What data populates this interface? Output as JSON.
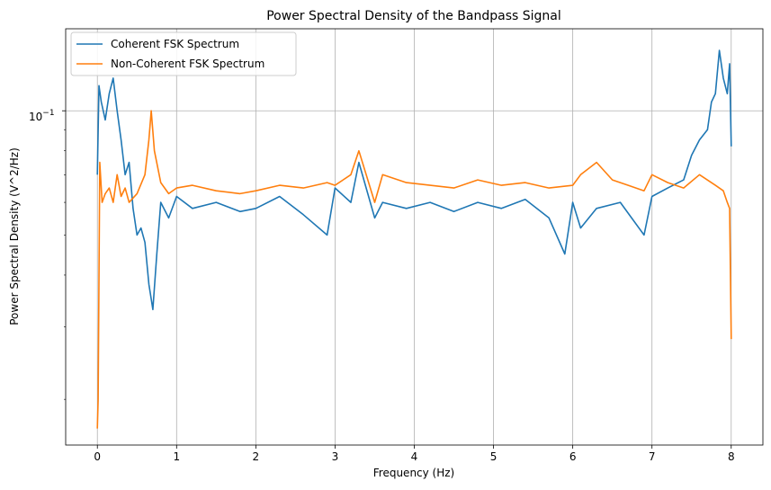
{
  "chart_data": {
    "type": "line",
    "title": "Power Spectral Density of the Bandpass Signal",
    "xlabel": "Frequency (Hz)",
    "ylabel": "Power Spectral Density (V^2/Hz)",
    "yscale": "log",
    "xlim": [
      -0.4,
      8.4
    ],
    "ylim": [
      0.0155,
      0.158
    ],
    "x_ticks": [
      0,
      1,
      2,
      3,
      4,
      5,
      6,
      7,
      8
    ],
    "x_tick_labels": [
      "0",
      "1",
      "2",
      "3",
      "4",
      "5",
      "6",
      "7",
      "8"
    ],
    "y_ticks": [
      0.1
    ],
    "y_tick_base": "10",
    "y_tick_exp": "−1",
    "grid": true,
    "legend": "top-left",
    "series": [
      {
        "name": "Coherent FSK Spectrum",
        "color": "#1f77b4",
        "x": [
          0,
          0.02,
          0.05,
          0.1,
          0.15,
          0.2,
          0.25,
          0.3,
          0.35,
          0.4,
          0.45,
          0.5,
          0.55,
          0.6,
          0.65,
          0.68,
          0.7,
          0.75,
          0.8,
          0.9,
          1.0,
          1.2,
          1.5,
          1.8,
          2.0,
          2.3,
          2.6,
          2.9,
          3.0,
          3.2,
          3.3,
          3.5,
          3.6,
          3.9,
          4.2,
          4.5,
          4.8,
          5.1,
          5.4,
          5.7,
          5.9,
          6.0,
          6.1,
          6.3,
          6.6,
          6.9,
          7.0,
          7.2,
          7.4,
          7.5,
          7.6,
          7.7,
          7.75,
          7.8,
          7.85,
          7.9,
          7.95,
          7.98,
          8.0
        ],
        "values": [
          0.07,
          0.115,
          0.105,
          0.095,
          0.11,
          0.12,
          0.1,
          0.085,
          0.07,
          0.075,
          0.058,
          0.05,
          0.052,
          0.048,
          0.038,
          0.035,
          0.033,
          0.045,
          0.06,
          0.055,
          0.062,
          0.058,
          0.06,
          0.057,
          0.058,
          0.062,
          0.056,
          0.05,
          0.065,
          0.06,
          0.075,
          0.055,
          0.06,
          0.058,
          0.06,
          0.057,
          0.06,
          0.058,
          0.061,
          0.055,
          0.045,
          0.06,
          0.052,
          0.058,
          0.06,
          0.05,
          0.062,
          0.065,
          0.068,
          0.078,
          0.085,
          0.09,
          0.105,
          0.11,
          0.14,
          0.12,
          0.11,
          0.13,
          0.082
        ]
      },
      {
        "name": "Non-Coherent FSK Spectrum",
        "color": "#ff7f0e",
        "x": [
          0,
          0.01,
          0.03,
          0.06,
          0.1,
          0.15,
          0.2,
          0.25,
          0.3,
          0.35,
          0.4,
          0.5,
          0.6,
          0.65,
          0.68,
          0.72,
          0.8,
          0.9,
          1.0,
          1.2,
          1.5,
          1.8,
          2.0,
          2.3,
          2.6,
          2.9,
          3.0,
          3.2,
          3.3,
          3.5,
          3.6,
          3.9,
          4.2,
          4.5,
          4.8,
          5.1,
          5.4,
          5.7,
          6.0,
          6.1,
          6.3,
          6.5,
          6.7,
          6.9,
          7.0,
          7.2,
          7.4,
          7.6,
          7.8,
          7.9,
          7.95,
          7.98,
          8.0
        ],
        "values": [
          0.017,
          0.02,
          0.075,
          0.06,
          0.063,
          0.065,
          0.06,
          0.07,
          0.062,
          0.065,
          0.06,
          0.063,
          0.07,
          0.085,
          0.1,
          0.08,
          0.067,
          0.063,
          0.065,
          0.066,
          0.064,
          0.063,
          0.064,
          0.066,
          0.065,
          0.067,
          0.066,
          0.07,
          0.08,
          0.06,
          0.07,
          0.067,
          0.066,
          0.065,
          0.068,
          0.066,
          0.067,
          0.065,
          0.066,
          0.07,
          0.075,
          0.068,
          0.066,
          0.064,
          0.07,
          0.067,
          0.065,
          0.07,
          0.066,
          0.064,
          0.06,
          0.058,
          0.028
        ]
      }
    ]
  }
}
